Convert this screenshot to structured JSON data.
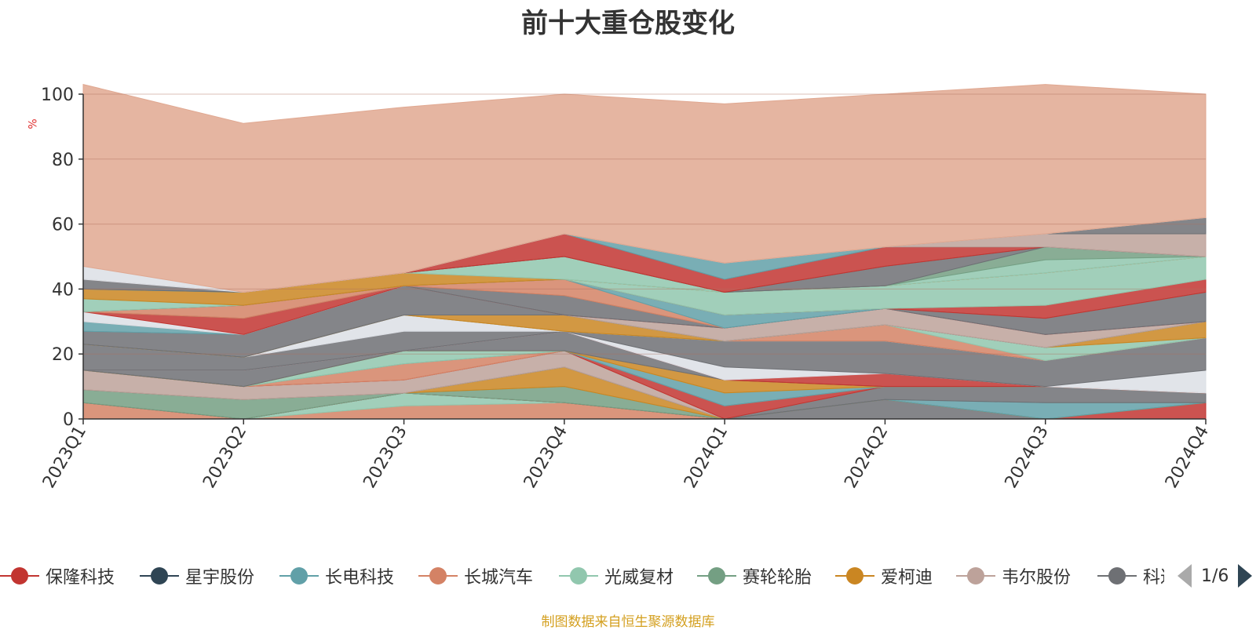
{
  "title": "前十大重仓股变化",
  "source": "制图数据来自恒生聚源数据库",
  "pager": {
    "text": "1/6"
  },
  "chart_data": {
    "type": "area",
    "stacked": true,
    "ylabel": "%",
    "ylim": [
      0,
      100
    ],
    "yticks": [
      0,
      20,
      40,
      60,
      80,
      100
    ],
    "categories": [
      "2023Q1",
      "2023Q2",
      "2023Q3",
      "2023Q4",
      "2024Q1",
      "2024Q2",
      "2024Q3",
      "2024Q4"
    ],
    "legend": [
      {
        "name": "保隆科技",
        "color": "#c23531"
      },
      {
        "name": "星宇股份",
        "color": "#2f4554"
      },
      {
        "name": "长电科技",
        "color": "#61a0a8"
      },
      {
        "name": "长城汽车",
        "color": "#d48265"
      },
      {
        "name": "光威复材",
        "color": "#91c7ae"
      },
      {
        "name": "赛轮轮胎",
        "color": "#749f83"
      },
      {
        "name": "爱柯迪",
        "color": "#ca8622"
      },
      {
        "name": "韦尔股份",
        "color": "#bda29a"
      },
      {
        "name": "科达利",
        "color": "#6e7074"
      }
    ],
    "legend_visible": [
      "保隆科技",
      "星宇股份",
      "长电科技",
      "长城汽车",
      "光威复材",
      "赛轮轮胎",
      "爱柯迪",
      "韦尔股份",
      "科达利"
    ],
    "series": [
      {
        "color": "#d48265",
        "values": [
          5,
          0,
          4,
          5,
          0,
          0,
          0,
          0
        ]
      },
      {
        "color": "#91c7ae",
        "values": [
          0,
          0,
          4,
          0,
          0,
          0,
          0,
          0
        ]
      },
      {
        "color": "#6e7074",
        "values": [
          0,
          0,
          0,
          0,
          0,
          6,
          0,
          0
        ]
      },
      {
        "color": "#c23531",
        "values": [
          0,
          0,
          0,
          0,
          0,
          0,
          0,
          5
        ]
      },
      {
        "color": "#749f83",
        "values": [
          4,
          6,
          0,
          5,
          0,
          0,
          0,
          0
        ]
      },
      {
        "color": "#ca8622",
        "values": [
          0,
          0,
          0,
          6,
          0,
          0,
          0,
          0
        ]
      },
      {
        "color": "#61a0a8",
        "values": [
          0,
          0,
          0,
          0,
          0,
          0,
          5,
          0
        ]
      },
      {
        "color": "#6e7074",
        "values": [
          0,
          0,
          0,
          0,
          0,
          4,
          5,
          3
        ]
      },
      {
        "color": "#bda29a",
        "values": [
          6,
          4,
          4,
          5,
          0,
          0,
          0,
          0
        ]
      },
      {
        "color": "#c23531",
        "values": [
          0,
          0,
          0,
          0,
          4,
          0,
          0,
          0
        ]
      },
      {
        "color": "#d48265",
        "values": [
          0,
          0,
          5,
          0,
          0,
          0,
          0,
          0
        ]
      },
      {
        "color": "#61a0a8",
        "values": [
          0,
          0,
          0,
          0,
          4,
          0,
          0,
          0
        ]
      },
      {
        "color": "#91c7ae",
        "values": [
          0,
          0,
          4,
          0,
          0,
          0,
          0,
          0
        ]
      },
      {
        "color": "#ca8622",
        "values": [
          0,
          0,
          0,
          0,
          4,
          0,
          0,
          0
        ]
      },
      {
        "color": "#6e7074",
        "values": [
          0,
          5,
          0,
          6,
          0,
          0,
          0,
          0
        ]
      },
      {
        "color": "#c23531",
        "values": [
          0,
          0,
          0,
          0,
          0,
          4,
          0,
          0
        ]
      },
      {
        "color": "#dcdfe5",
        "values": [
          0,
          0,
          0,
          0,
          4,
          0,
          0,
          7
        ]
      },
      {
        "color": "#6e7074",
        "values": [
          8,
          4,
          6,
          0,
          8,
          10,
          8,
          10
        ]
      },
      {
        "color": "#dcdfe5",
        "values": [
          0,
          0,
          5,
          0,
          0,
          0,
          0,
          0
        ]
      },
      {
        "color": "#d48265",
        "values": [
          0,
          0,
          0,
          0,
          0,
          5,
          0,
          0
        ]
      },
      {
        "color": "#91c7ae",
        "values": [
          0,
          0,
          0,
          0,
          0,
          0,
          4,
          0
        ]
      },
      {
        "color": "#ca8622",
        "values": [
          0,
          0,
          0,
          5,
          0,
          0,
          0,
          5
        ]
      },
      {
        "color": "#6e7074",
        "values": [
          4,
          7,
          9,
          0,
          0,
          0,
          0,
          0
        ]
      },
      {
        "color": "#61a0a8",
        "values": [
          3,
          0,
          0,
          0,
          0,
          0,
          0,
          0
        ]
      },
      {
        "color": "#bda29a",
        "values": [
          0,
          0,
          0,
          0,
          4,
          5,
          4,
          0
        ]
      },
      {
        "color": "#dcdfe5",
        "values": [
          3,
          0,
          0,
          0,
          0,
          0,
          0,
          0
        ]
      },
      {
        "color": "#c23531",
        "values": [
          0,
          5,
          0,
          0,
          0,
          0,
          0,
          0
        ]
      },
      {
        "color": "#6e7074",
        "values": [
          0,
          0,
          0,
          6,
          0,
          0,
          5,
          9
        ]
      },
      {
        "color": "#d48265",
        "values": [
          0,
          4,
          0,
          5,
          0,
          0,
          0,
          0
        ]
      },
      {
        "color": "#61a0a8",
        "values": [
          0,
          0,
          0,
          0,
          4,
          0,
          0,
          0
        ]
      },
      {
        "color": "#c23531",
        "values": [
          0,
          0,
          0,
          0,
          0,
          0,
          4,
          4
        ]
      },
      {
        "color": "#91c7ae",
        "values": [
          4,
          0,
          0,
          0,
          7,
          7,
          10,
          7
        ]
      },
      {
        "color": "#ca8622",
        "values": [
          3,
          4,
          4,
          0,
          0,
          0,
          0,
          0
        ]
      },
      {
        "color": "#d48265",
        "values": [
          0,
          0,
          0,
          0,
          0,
          0,
          0,
          0
        ]
      },
      {
        "color": "#91c7ae",
        "values": [
          0,
          0,
          0,
          7,
          0,
          0,
          4,
          0
        ]
      },
      {
        "color": "#749f83",
        "values": [
          0,
          0,
          0,
          0,
          0,
          0,
          4,
          0
        ]
      },
      {
        "color": "#6e7074",
        "values": [
          3,
          0,
          0,
          0,
          0,
          6,
          0,
          0
        ]
      },
      {
        "color": "#c23531",
        "values": [
          0,
          0,
          0,
          7,
          4,
          6,
          0,
          0
        ]
      },
      {
        "color": "#61a0a8",
        "values": [
          0,
          0,
          0,
          0,
          5,
          0,
          0,
          0
        ]
      },
      {
        "color": "#bda29a",
        "values": [
          0,
          0,
          0,
          0,
          0,
          0,
          4,
          7
        ]
      },
      {
        "color": "#6e7074",
        "values": [
          0,
          0,
          0,
          0,
          0,
          0,
          0,
          5
        ]
      },
      {
        "color": "#dcdfe5",
        "values": [
          4,
          0,
          0,
          0,
          0,
          0,
          0,
          0
        ]
      },
      {
        "color": "#e0a891",
        "values": [
          56,
          52,
          51,
          43,
          49,
          47,
          46,
          38
        ]
      }
    ]
  }
}
